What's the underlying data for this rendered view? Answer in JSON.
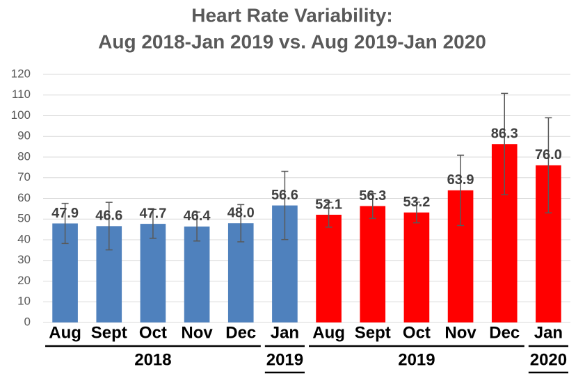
{
  "chart_data": {
    "type": "bar",
    "title": [
      "Heart Rate Variability:",
      "Aug 2018-Jan 2019 vs. Aug 2019-Jan 2020"
    ],
    "categories": [
      "Aug",
      "Sept",
      "Oct",
      "Nov",
      "Dec",
      "Jan",
      "Aug",
      "Sept",
      "Oct",
      "Nov",
      "Dec",
      "Jan"
    ],
    "values": [
      47.9,
      46.6,
      47.7,
      46.4,
      48.0,
      56.6,
      52.1,
      56.3,
      53.2,
      63.9,
      86.3,
      76.0
    ],
    "value_labels": [
      "47.9",
      "46.6",
      "47.7",
      "46.4",
      "48.0",
      "56.6",
      "52.1",
      "56.3",
      "53.2",
      "63.9",
      "86.3",
      "76.0"
    ],
    "errors": [
      9.7,
      11.5,
      7,
      7,
      9,
      16.5,
      6,
      6,
      5,
      17,
      24.5,
      23
    ],
    "colors": [
      "#4f81bd",
      "#4f81bd",
      "#4f81bd",
      "#4f81bd",
      "#4f81bd",
      "#4f81bd",
      "#ff0000",
      "#ff0000",
      "#ff0000",
      "#ff0000",
      "#ff0000",
      "#ff0000"
    ],
    "groups": [
      {
        "label": "2018",
        "span": 5
      },
      {
        "label": "2019",
        "span": 1
      },
      {
        "label": "2019",
        "span": 5
      },
      {
        "label": "2020",
        "span": 1
      }
    ],
    "ylim": [
      0,
      120
    ],
    "yticks": [
      0,
      10,
      20,
      30,
      40,
      50,
      60,
      70,
      80,
      90,
      100,
      110,
      120
    ],
    "grid": true
  }
}
